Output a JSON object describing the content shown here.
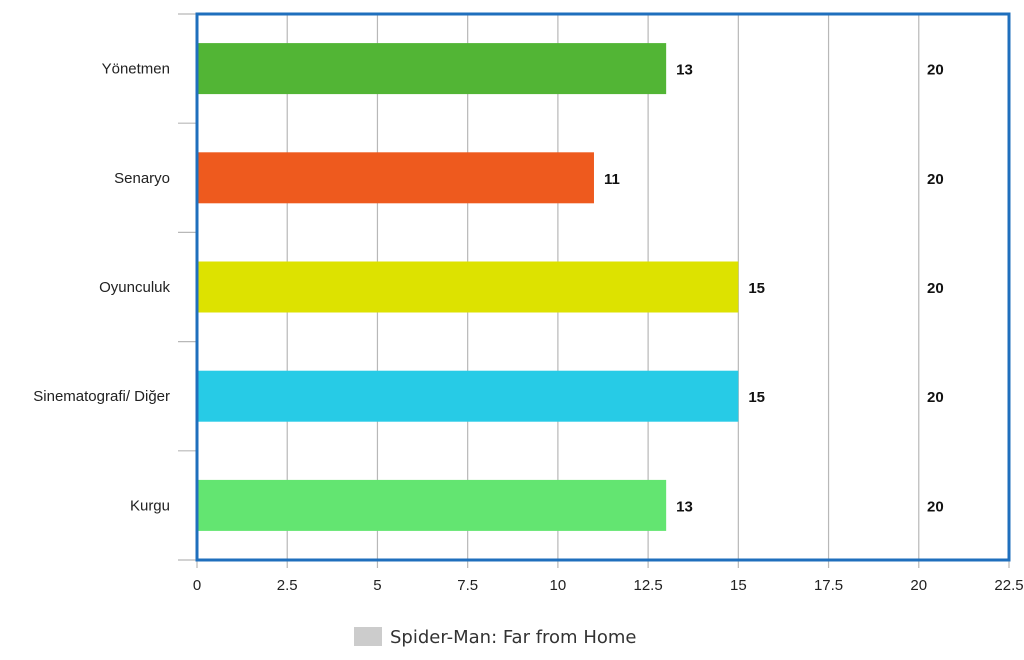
{
  "chart_data": {
    "type": "bar",
    "orientation": "horizontal",
    "categories": [
      "Yönetmen",
      "Senaryo",
      "Oyunculuk",
      "Sinematografi/ Diğer",
      "Kurgu"
    ],
    "series": [
      {
        "name": "Spider-Man: Far from Home",
        "values": [
          13,
          11,
          15,
          15,
          13
        ],
        "colors": [
          "#52b535",
          "#ee5a1e",
          "#dde200",
          "#27cbe6",
          "#63e571"
        ]
      }
    ],
    "max_labels": [
      "20",
      "20",
      "20",
      "20",
      "20"
    ],
    "x_ticks": [
      "0",
      "2.5",
      "5",
      "7.5",
      "10",
      "12.5",
      "15",
      "17.5",
      "20",
      "22.5"
    ],
    "xlim": [
      0,
      22.5
    ],
    "grid": true,
    "legend_position": "bottom",
    "legend_swatch_color": "#cccccc",
    "frame_color": "#1f6fbd",
    "gridline_color": "#b8b8b8"
  }
}
